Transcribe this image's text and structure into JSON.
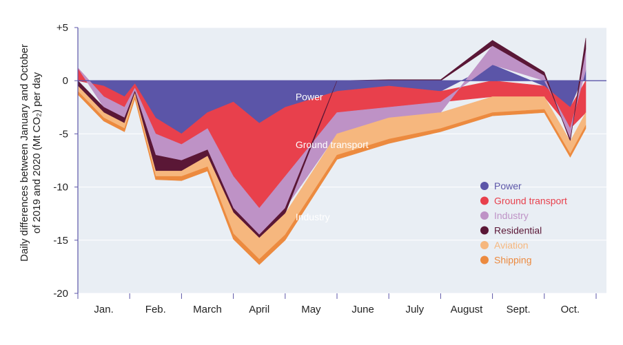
{
  "chart_data": {
    "type": "area",
    "ylabel_line1": "Daily differences between January and October",
    "ylabel_line2": "of 2019 and 2020 (Mt CO₂) per day",
    "ylim": [
      -20,
      5
    ],
    "yticks": [
      5,
      0,
      -5,
      -10,
      -15,
      -20
    ],
    "ytick_labels": [
      "+5",
      "0",
      "-5",
      "-10",
      "-15",
      "-20"
    ],
    "months": [
      "Jan.",
      "Feb.",
      "March",
      "April",
      "May",
      "June",
      "July",
      "August",
      "Sept.",
      "Oct."
    ],
    "x": [
      0,
      0.5,
      0.9,
      1.1,
      1.5,
      2,
      2.5,
      3,
      3.5,
      4,
      5,
      6,
      7,
      8,
      9,
      9.5,
      9.8
    ],
    "x_unit": "months since 1 January 2020",
    "grid": true,
    "legend_position": "right",
    "colors": {
      "power": "#5B55A8",
      "ground_transport": "#E8404C",
      "industry": "#BE92C6",
      "residential": "#5A1736",
      "aviation": "#F6B77E",
      "shipping": "#EC8A3F",
      "background": "#E9EEF4"
    },
    "series": [
      {
        "name": "Power",
        "key": "power",
        "color": "#5B55A8",
        "values": [
          0,
          -0.5,
          -1.5,
          -0.3,
          -3.5,
          -5,
          -3,
          -2,
          -4,
          -2.5,
          -1,
          -0.5,
          -1,
          1.5,
          -0.5,
          -2.5,
          1
        ]
      },
      {
        "name": "Ground transport",
        "key": "ground_transport",
        "color": "#E8404C",
        "values": [
          1.2,
          -1,
          -1,
          -0.4,
          -1.5,
          -1,
          -1.5,
          -7,
          -8,
          -6.5,
          -2,
          -2,
          -1,
          -1.5,
          -1,
          -2,
          -3
        ]
      },
      {
        "name": "Industry",
        "key": "industry",
        "color": "#BE92C6",
        "values": [
          0,
          -1,
          -1,
          -0.3,
          -2,
          -1.5,
          -2,
          -3,
          -2.5,
          -3,
          -2,
          -1,
          -1,
          1.8,
          0.5,
          -1,
          2
        ]
      },
      {
        "name": "Residential",
        "key": "residential",
        "color": "#5A1736",
        "values": [
          -0.5,
          -0.5,
          -0.5,
          -0.2,
          -1.5,
          -1,
          -0.6,
          -0.4,
          -0.3,
          -0.5,
          0,
          0.1,
          0.1,
          0.5,
          0.3,
          -0.2,
          1
        ]
      },
      {
        "name": "Aviation",
        "key": "aviation",
        "color": "#F6B77E",
        "values": [
          -0.5,
          -0.5,
          -0.5,
          -0.3,
          -0.5,
          -0.5,
          -1,
          -2,
          -2,
          -2,
          -2,
          -2,
          -1.5,
          -1.5,
          -1.2,
          -1.2,
          -1.2
        ]
      },
      {
        "name": "Shipping",
        "key": "shipping",
        "color": "#EC8A3F",
        "values": [
          -0.3,
          -0.3,
          -0.3,
          -0.2,
          -0.3,
          -0.4,
          -0.4,
          -0.5,
          -0.5,
          -0.5,
          -0.4,
          -0.4,
          -0.3,
          -0.3,
          -0.3,
          -0.3,
          -0.3
        ]
      }
    ],
    "annotations": [
      {
        "text": "Power",
        "x": 4.2,
        "y": -1.5
      },
      {
        "text": "Ground transport",
        "x": 4.2,
        "y": -6
      },
      {
        "text": "Industry",
        "x": 4.2,
        "y": -12.8
      }
    ]
  }
}
